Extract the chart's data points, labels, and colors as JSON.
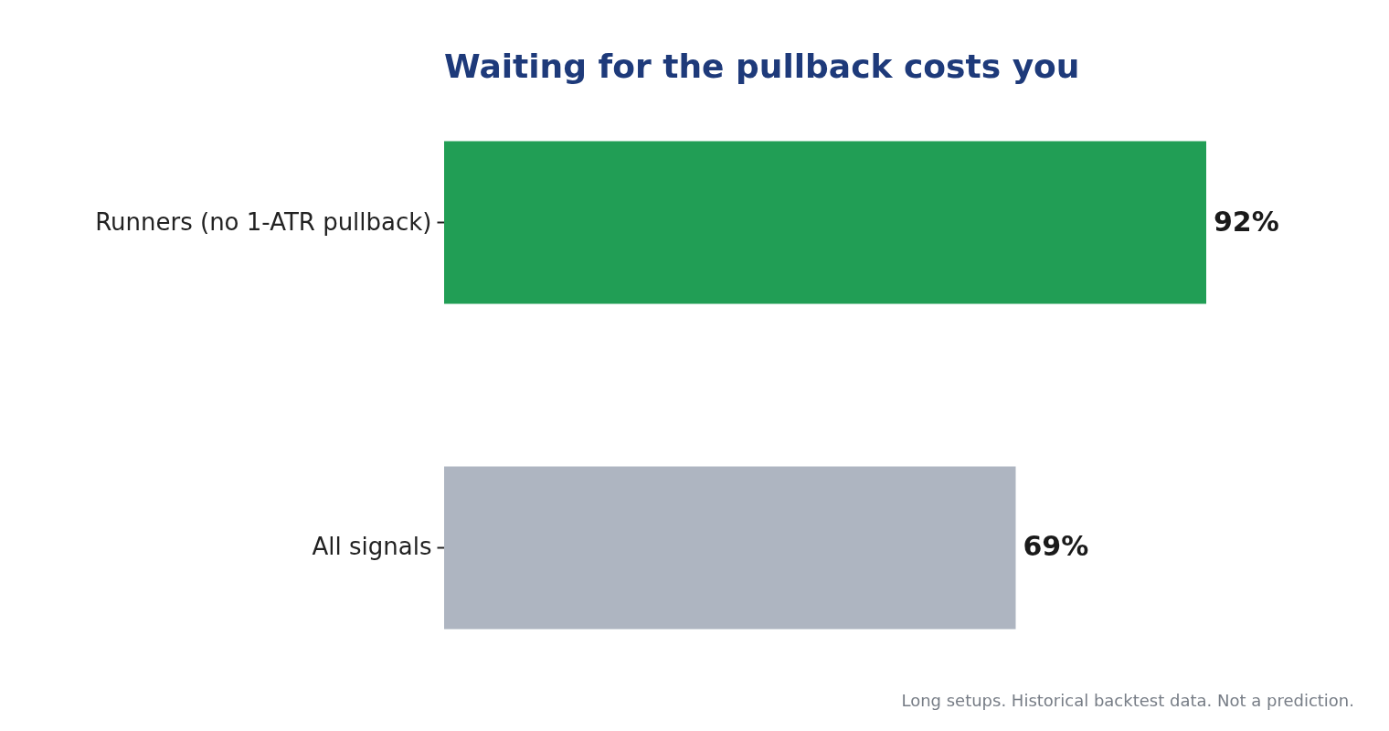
{
  "chart_data": {
    "type": "bar",
    "orientation": "horizontal",
    "title": "Waiting for the pullback costs you",
    "categories": [
      "Runners (no 1-ATR pullback)",
      "All signals"
    ],
    "values": [
      92,
      69
    ],
    "colors": [
      "#219e55",
      "#aeb5c1"
    ],
    "value_labels": [
      "92%",
      "69%"
    ],
    "annotations": [
      "Long setups. Historical backtest data. Not a prediction."
    ]
  }
}
